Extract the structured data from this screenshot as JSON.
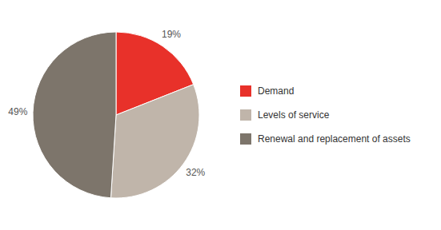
{
  "chart_data": {
    "type": "pie",
    "categories": [
      "Demand",
      "Levels of service",
      "Renewal and replacement of assets"
    ],
    "values": [
      19,
      32,
      49
    ],
    "value_labels": [
      "19%",
      "32%",
      "49%"
    ],
    "data_labels": true,
    "colors": [
      "#e8312a",
      "#c0b5aa",
      "#7d756b"
    ],
    "legend": "right"
  }
}
